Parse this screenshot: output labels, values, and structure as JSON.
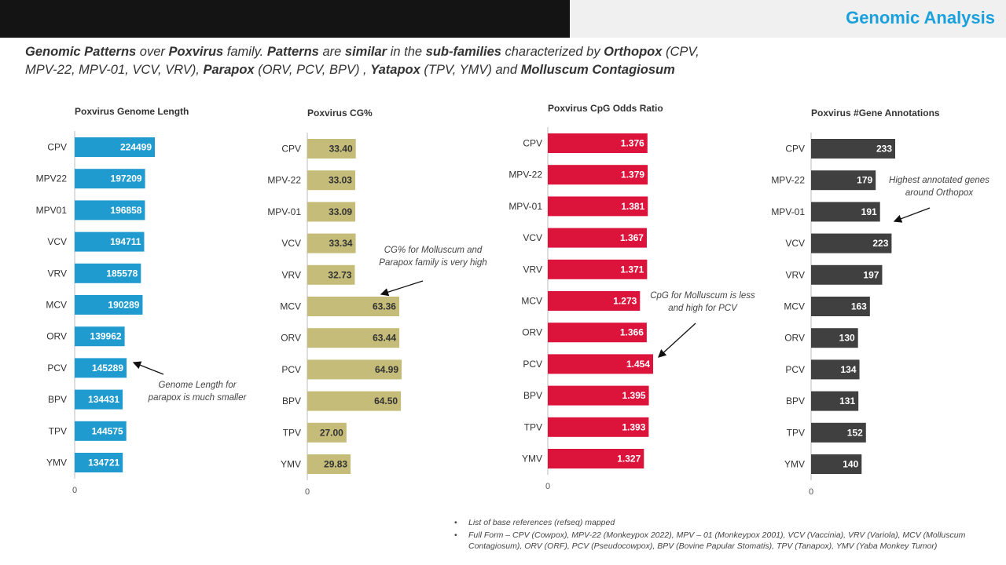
{
  "header": {
    "title": "Genomic Analysis"
  },
  "subtitle": {
    "parts": [
      {
        "text": "Genomic Patterns",
        "bold": true
      },
      {
        "text": " over ",
        "bold": false
      },
      {
        "text": "Poxvirus",
        "bold": true
      },
      {
        "text": " family. ",
        "bold": false
      },
      {
        "text": "Patterns",
        "bold": true
      },
      {
        "text": " are ",
        "bold": false
      },
      {
        "text": "similar",
        "bold": true
      },
      {
        "text": " in the ",
        "bold": false
      },
      {
        "text": "sub-families",
        "bold": true
      },
      {
        "text": " characterized by ",
        "bold": false
      },
      {
        "text": "Orthopox",
        "bold": true
      },
      {
        "text": " (CPV, MPV-22, MPV-01, VCV, VRV), ",
        "bold": false
      },
      {
        "text": "Parapox",
        "bold": true
      },
      {
        "text": " (ORV, PCV, BPV) , ",
        "bold": false
      },
      {
        "text": "Yatapox",
        "bold": true
      },
      {
        "text": " (TPV, YMV) and ",
        "bold": false
      },
      {
        "text": "Molluscum Contagiosum",
        "bold": true
      }
    ]
  },
  "chart_data": [
    {
      "type": "bar",
      "orientation": "horizontal",
      "title": "Poxvirus Genome Length",
      "categories": [
        "CPV",
        "MPV22",
        "MPV01",
        "VCV",
        "VRV",
        "MCV",
        "ORV",
        "PCV",
        "BPV",
        "TPV",
        "YMV"
      ],
      "values": [
        224499,
        197209,
        196858,
        194711,
        185578,
        190289,
        139962,
        145289,
        134431,
        144575,
        134721
      ],
      "value_labels": [
        "224499",
        "197209",
        "196858",
        "194711",
        "185578",
        "190289",
        "139962",
        "145289",
        "134431",
        "144575",
        "134721"
      ],
      "color": "#1f9bcf",
      "label_color": "#ffffff",
      "axis_zero_label": "0",
      "grid": false
    },
    {
      "type": "bar",
      "orientation": "horizontal",
      "title": "Poxvirus CG%",
      "categories": [
        "CPV",
        "MPV-22",
        "MPV-01",
        "VCV",
        "VRV",
        "MCV",
        "ORV",
        "PCV",
        "BPV",
        "TPV",
        "YMV"
      ],
      "values": [
        33.4,
        33.03,
        33.09,
        33.34,
        32.73,
        63.36,
        63.44,
        64.99,
        64.5,
        27.0,
        29.83
      ],
      "value_labels": [
        "33.40",
        "33.03",
        "33.09",
        "33.34",
        "32.73",
        "63.36",
        "63.44",
        "64.99",
        "64.50",
        "27.00",
        "29.83"
      ],
      "color": "#c4bc78",
      "label_color": "#333333",
      "axis_zero_label": "0",
      "grid": false
    },
    {
      "type": "bar",
      "orientation": "horizontal",
      "title": "Poxvirus CpG Odds Ratio",
      "categories": [
        "CPV",
        "MPV-22",
        "MPV-01",
        "VCV",
        "VRV",
        "MCV",
        "ORV",
        "PCV",
        "BPV",
        "TPV",
        "YMV"
      ],
      "values": [
        1.376,
        1.379,
        1.381,
        1.367,
        1.371,
        1.273,
        1.366,
        1.454,
        1.395,
        1.393,
        1.327
      ],
      "value_labels": [
        "1.376",
        "1.379",
        "1.381",
        "1.367",
        "1.371",
        "1.273",
        "1.366",
        "1.454",
        "1.395",
        "1.393",
        "1.327"
      ],
      "color": "#dc143c",
      "label_color": "#ffffff",
      "axis_zero_label": "0",
      "grid": false
    },
    {
      "type": "bar",
      "orientation": "horizontal",
      "title": "Poxvirus #Gene Annotations",
      "categories": [
        "CPV",
        "MPV-22",
        "MPV-01",
        "VCV",
        "VRV",
        "MCV",
        "ORV",
        "PCV",
        "BPV",
        "TPV",
        "YMV"
      ],
      "values": [
        233,
        179,
        191,
        223,
        197,
        163,
        130,
        134,
        131,
        152,
        140
      ],
      "value_labels": [
        "233",
        "179",
        "191",
        "223",
        "197",
        "163",
        "130",
        "134",
        "131",
        "152",
        "140"
      ],
      "color": "#404040",
      "label_color": "#ffffff",
      "axis_zero_label": "0",
      "grid": false
    }
  ],
  "annotations": {
    "genome_note": "Genome Length for parapox is much smaller",
    "cg_note": "CG% for Molluscum and Parapox family is very high",
    "cpg_note": "CpG for Molluscum is less and high for PCV",
    "gene_note": "Highest annotated genes around Orthopox"
  },
  "footnotes": [
    "List of base references (refseq) mapped",
    "Full Form – CPV (Cowpox), MPV-22 (Monkeypox 2022), MPV – 01 (Monkeypox 2001), VCV (Vaccinia), VRV (Variola), MCV (Molluscum Contagiosum), ORV (ORF), PCV (Pseudocowpox), BPV (Bovine Papular Stomatis), TPV (Tanapox), YMV (Yaba Monkey Tumor)"
  ]
}
